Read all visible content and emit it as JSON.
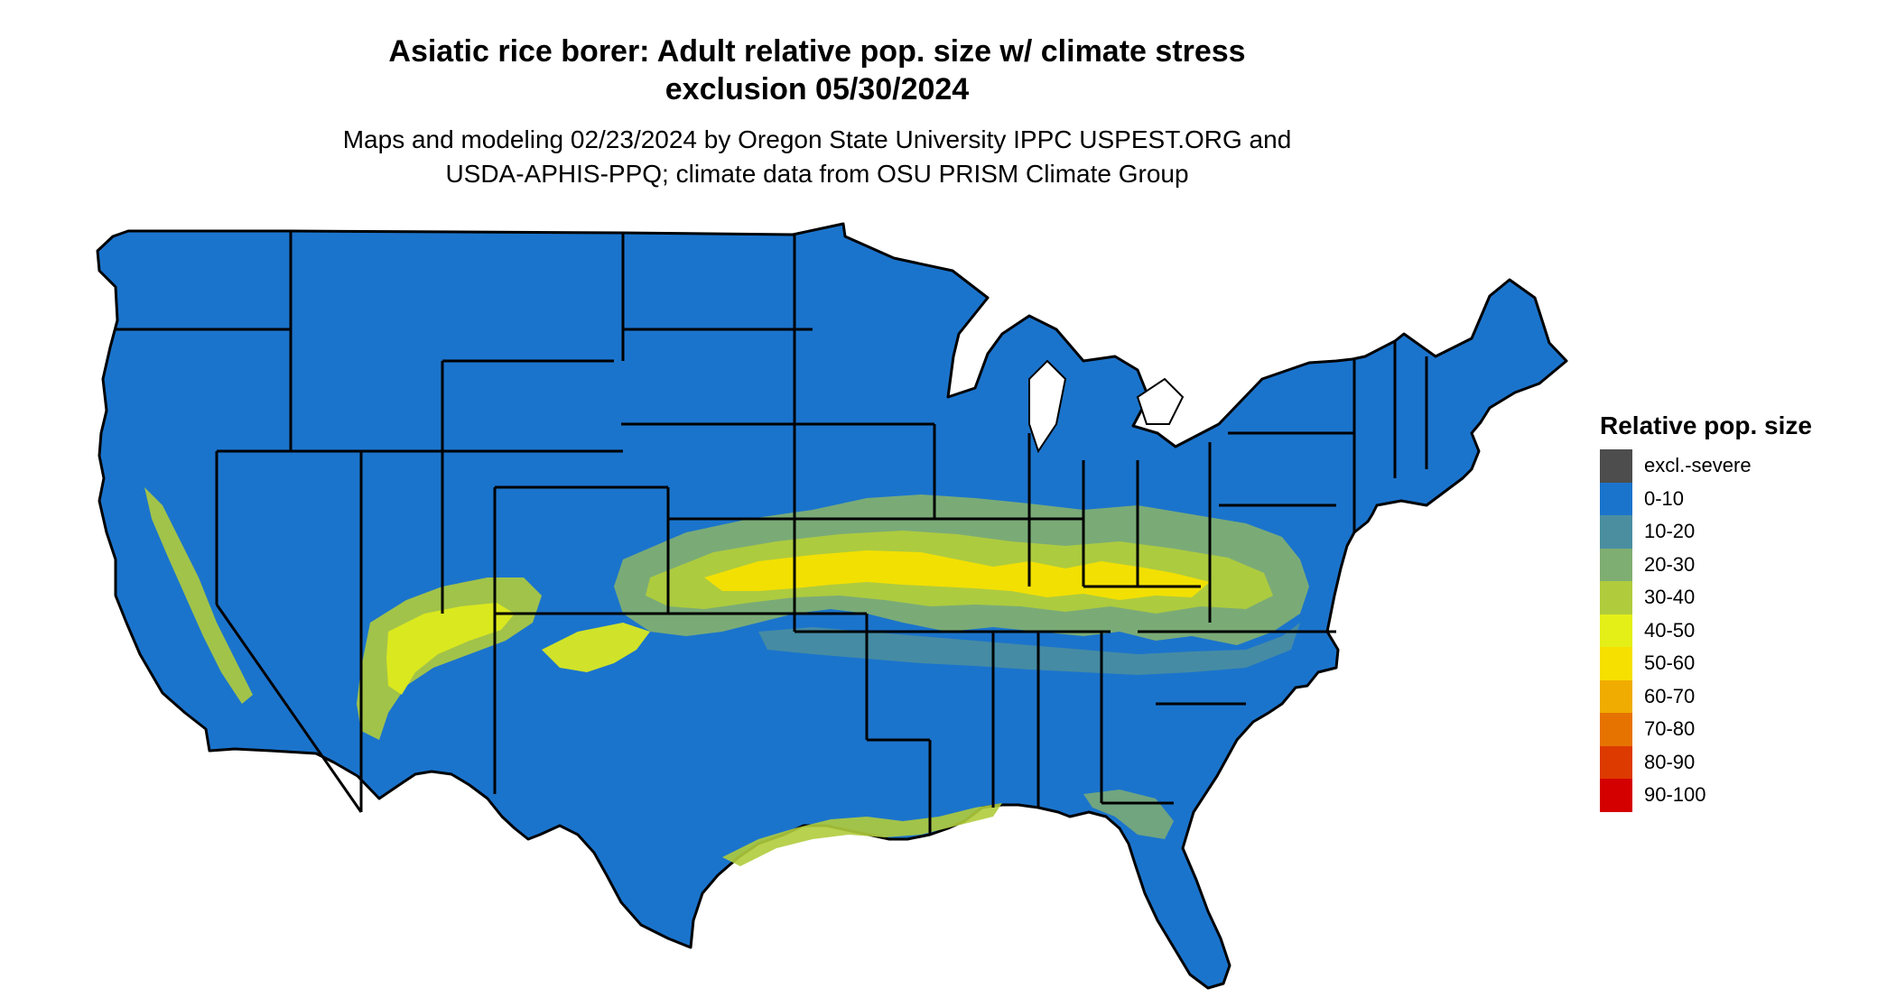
{
  "header": {
    "title_line1": "Asiatic rice borer: Adult relative pop. size w/ climate stress",
    "title_line2": "exclusion 05/30/2024",
    "subtitle_line1": "Maps and modeling 02/23/2024 by Oregon State University IPPC USPEST.ORG and",
    "subtitle_line2": "USDA-APHIS-PPQ; climate data from OSU PRISM Climate Group"
  },
  "map": {
    "region": "conterminous-united-states",
    "base_color": "#1b74cc",
    "border_color": "#000000",
    "dominant_class": "0-10"
  },
  "legend": {
    "title": "Relative pop. size",
    "items": [
      {
        "label": "excl.-severe",
        "color": "#4d4d4d"
      },
      {
        "label": "0-10",
        "color": "#1b74cc"
      },
      {
        "label": "10-20",
        "color": "#4a8ea0"
      },
      {
        "label": "20-30",
        "color": "#7fae72"
      },
      {
        "label": "30-40",
        "color": "#b0cc3c"
      },
      {
        "label": "40-50",
        "color": "#e4ef18"
      },
      {
        "label": "50-60",
        "color": "#f5e000"
      },
      {
        "label": "60-70",
        "color": "#f0ac00"
      },
      {
        "label": "70-80",
        "color": "#e67300"
      },
      {
        "label": "80-90",
        "color": "#dd3a00"
      },
      {
        "label": "90-100",
        "color": "#d40000"
      }
    ]
  }
}
